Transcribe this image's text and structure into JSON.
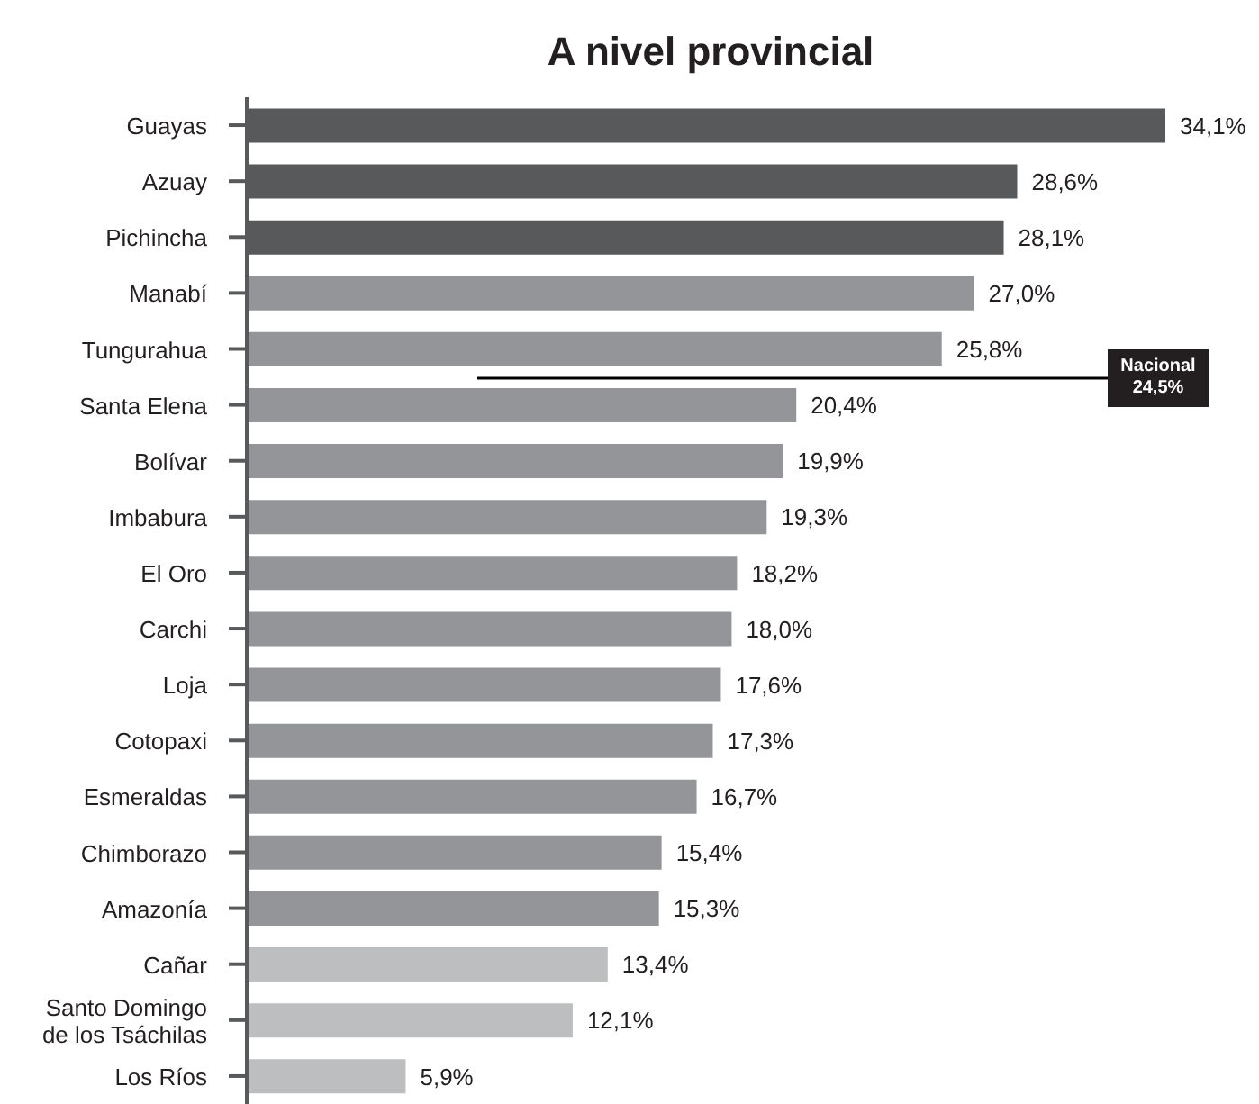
{
  "chart_data": {
    "type": "bar",
    "orientation": "horizontal",
    "title": "A nivel provincial",
    "categories": [
      "Guayas",
      "Azuay",
      "Pichincha",
      "Manabí",
      "Tungurahua",
      "Santa Elena",
      "Bolívar",
      "Imbabura",
      "El Oro",
      "Carchi",
      "Loja",
      "Cotopaxi",
      "Esmeraldas",
      "Chimborazo",
      "Amazonía",
      "Cañar",
      "Santo Domingo\nde los Tsáchilas",
      "Los Ríos"
    ],
    "values": [
      34.1,
      28.6,
      28.1,
      27.0,
      25.8,
      20.4,
      19.9,
      19.3,
      18.2,
      18.0,
      17.6,
      17.3,
      16.7,
      15.4,
      15.3,
      13.4,
      12.1,
      5.9
    ],
    "colors": [
      "#58595b",
      "#58595b",
      "#58595b",
      "#939598",
      "#939598",
      "#939598",
      "#939598",
      "#939598",
      "#939598",
      "#939598",
      "#939598",
      "#939598",
      "#939598",
      "#939598",
      "#939598",
      "#bcbec0",
      "#bcbec0",
      "#bcbec0"
    ],
    "value_labels": [
      "34,1%",
      "28,6%",
      "28,1%",
      "27,0%",
      "25,8%",
      "20,4%",
      "19,9%",
      "19,3%",
      "18,2%",
      "18,0%",
      "17,6%",
      "17,3%",
      "16,7%",
      "15,4%",
      "15,3%",
      "13,4%",
      "12,1%",
      "5,9%"
    ],
    "annotations": [
      "Nacional\n24,5%"
    ],
    "tick_labels": "y"
  }
}
